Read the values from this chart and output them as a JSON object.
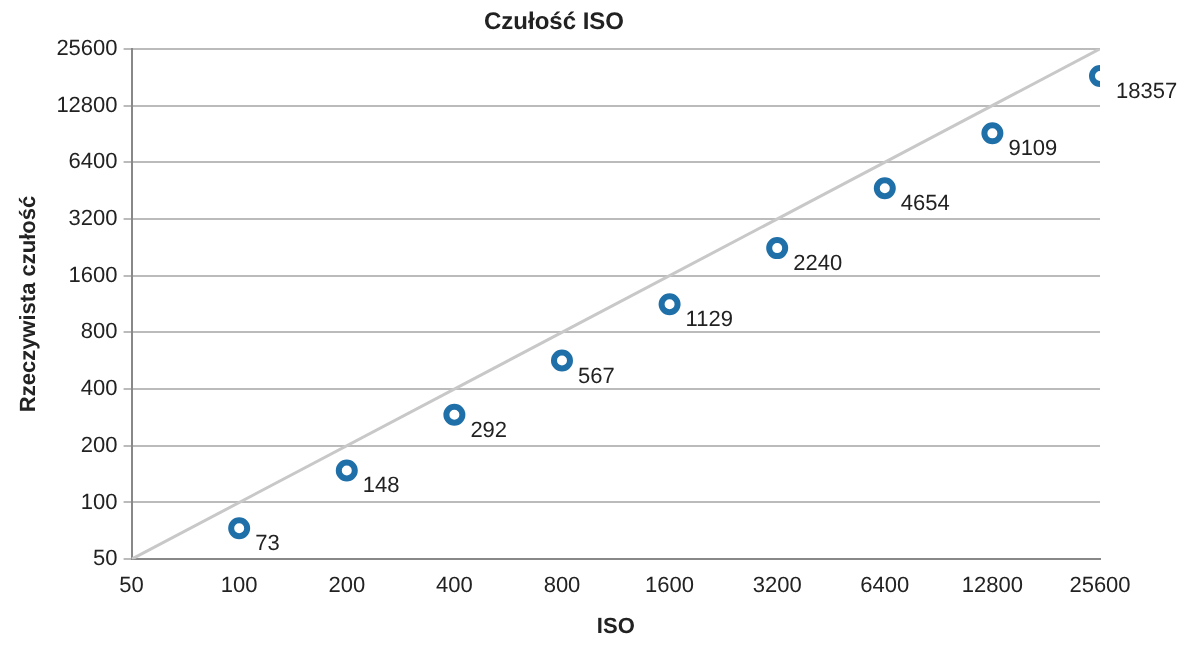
{
  "chart_data": {
    "type": "scatter",
    "title": "Czułość ISO",
    "xlabel": "ISO",
    "ylabel": "Rzeczywista czułość",
    "log": "xy",
    "grid": "y",
    "legend": false,
    "marker": "circle",
    "xlim": [
      50,
      25600
    ],
    "xticks": [
      50,
      100,
      200,
      400,
      800,
      1600,
      3200,
      6400,
      12800,
      25600
    ],
    "ylim": [
      50,
      25600
    ],
    "yticks": [
      50,
      100,
      200,
      400,
      800,
      1600,
      3200,
      6400,
      12800,
      25600
    ],
    "series": [
      {
        "type": "line",
        "color": "#c8c8c8",
        "marker": "none",
        "x": [
          50,
          25600
        ],
        "values": [
          50,
          25600
        ]
      },
      {
        "color": "#1f6fa8",
        "x": [
          100,
          200,
          400,
          800,
          1600,
          3200,
          6400,
          12800,
          25600
        ],
        "values": [
          73,
          148,
          292,
          567,
          1129,
          2240,
          4654,
          9109,
          18357
        ],
        "value_labels": [
          "73",
          "148",
          "292",
          "567",
          "1129",
          "2240",
          "4654",
          "9109",
          "18357"
        ]
      }
    ]
  }
}
